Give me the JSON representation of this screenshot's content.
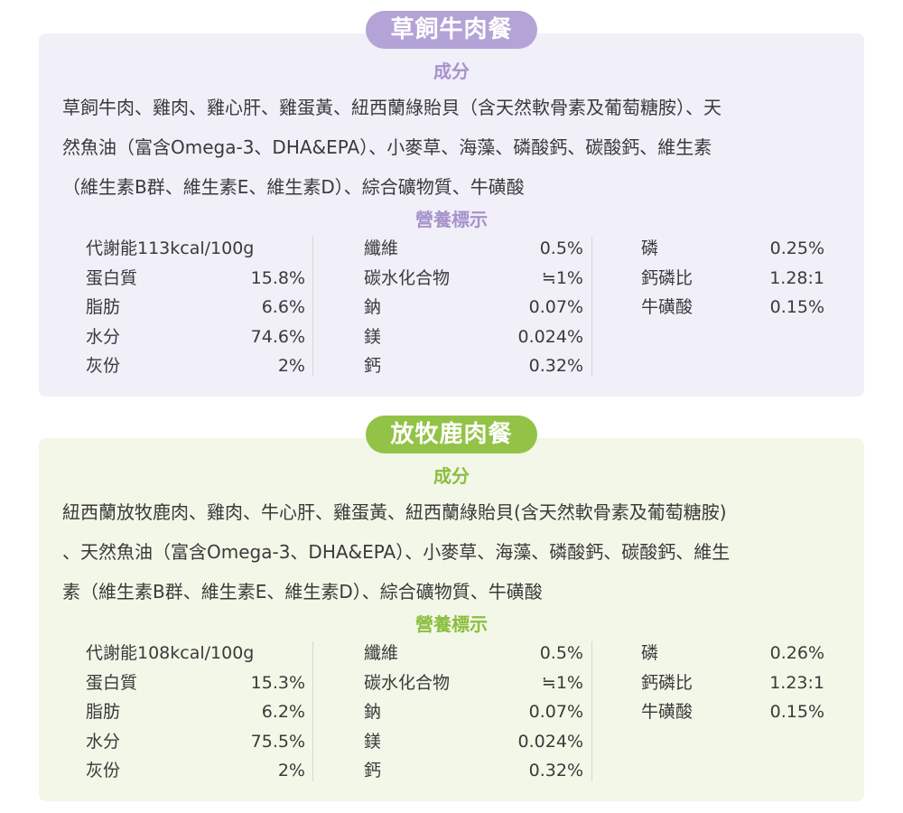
{
  "sections": [
    {
      "title": "草飼牛肉餐",
      "ingredients_heading": "成分",
      "ingredients_lines": [
        "草飼牛肉、雞肉、雞心肝、雞蛋黃、紐西蘭綠貽貝（含天然軟骨素及葡萄糖胺）、天",
        "然魚油（富含Omega-3、DHA&EPA）、小麥草、海藻、磷酸鈣、碳酸鈣、維生素",
        "（維生素B群、維生素E、維生素D）、綜合礦物質、牛磺酸"
      ],
      "nutrition_heading": "營養標示",
      "columns": [
        [
          {
            "label": "代謝能113kcal/100g",
            "value": ""
          },
          {
            "label": "蛋白質",
            "value": "15.8%"
          },
          {
            "label": "脂肪",
            "value": "6.6%"
          },
          {
            "label": "水分",
            "value": "74.6%"
          },
          {
            "label": "灰份",
            "value": "2%"
          }
        ],
        [
          {
            "label": "纖維",
            "value": "0.5%"
          },
          {
            "label": "碳水化合物",
            "value": "≒1%"
          },
          {
            "label": "鈉",
            "value": "0.07%"
          },
          {
            "label": "鎂",
            "value": "0.024%"
          },
          {
            "label": "鈣",
            "value": "0.32%"
          }
        ],
        [
          {
            "label": "磷",
            "value": "0.25%"
          },
          {
            "label": "鈣磷比",
            "value": "1.28:1"
          },
          {
            "label": "牛磺酸",
            "value": "0.15%"
          }
        ]
      ]
    },
    {
      "title": "放牧鹿肉餐",
      "ingredients_heading": "成分",
      "ingredients_lines": [
        "紐西蘭放牧鹿肉、雞肉、牛心肝、雞蛋黃、紐西蘭綠貽貝(含天然軟骨素及葡萄糖胺)",
        "、天然魚油（富含Omega-3、DHA&EPA）、小麥草、海藻、磷酸鈣、碳酸鈣、維生",
        "素（維生素B群、維生素E、維生素D）、綜合礦物質、牛磺酸"
      ],
      "nutrition_heading": "營養標示",
      "columns": [
        [
          {
            "label": "代謝能108kcal/100g",
            "value": ""
          },
          {
            "label": "蛋白質",
            "value": "15.3%"
          },
          {
            "label": "脂肪",
            "value": "6.2%"
          },
          {
            "label": "水分",
            "value": "75.5%"
          },
          {
            "label": "灰份",
            "value": "2%"
          }
        ],
        [
          {
            "label": "纖維",
            "value": "0.5%"
          },
          {
            "label": "碳水化合物",
            "value": "≒1%"
          },
          {
            "label": "鈉",
            "value": "0.07%"
          },
          {
            "label": "鎂",
            "value": "0.024%"
          },
          {
            "label": "鈣",
            "value": "0.32%"
          }
        ],
        [
          {
            "label": "磷",
            "value": "0.26%"
          },
          {
            "label": "鈣磷比",
            "value": "1.23:1"
          },
          {
            "label": "牛磺酸",
            "value": "0.15%"
          }
        ]
      ]
    }
  ],
  "colors": {
    "beef_accent": "#b4a3d6",
    "beef_bg": "#f1eff8",
    "venison_accent": "#93c346",
    "venison_bg": "#f2f7e8"
  }
}
